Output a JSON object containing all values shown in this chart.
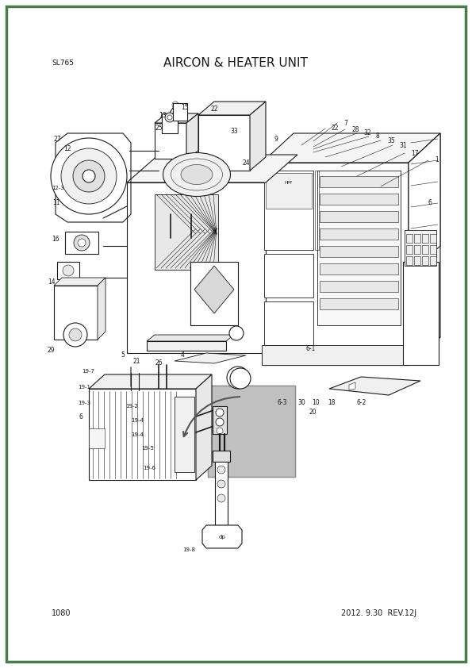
{
  "page_width": 5.95,
  "page_height": 8.42,
  "dpi": 100,
  "bg_color": "#ffffff",
  "border_color": "#4a7c4e",
  "border_lw": 2.5,
  "title": "AIRCON & HEATER UNIT",
  "title_fontsize": 11,
  "model_label": "SL765",
  "model_fontsize": 6.5,
  "page_num": "1080",
  "page_num_fontsize": 7,
  "rev_label": "2012. 9.30  REV.12J",
  "rev_fontsize": 7,
  "line_color": "#1a1a1a",
  "lw_main": 0.8,
  "lw_thin": 0.4,
  "lw_med": 0.6,
  "gray_fill": "#c0c0c0",
  "light_gray": "#e0e0e0",
  "hatch_gray": "#d0d0d0"
}
